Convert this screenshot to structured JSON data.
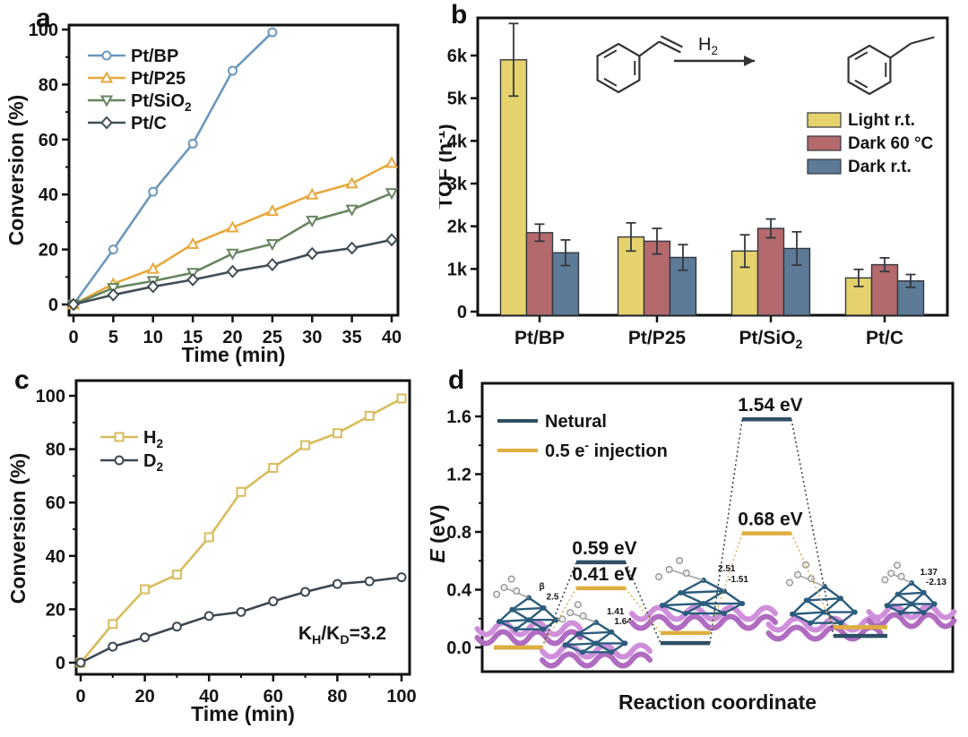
{
  "figure": {
    "panel_letters": {
      "a": "a",
      "b": "b",
      "c": "c",
      "d": "d"
    }
  },
  "chart_data": [
    {
      "panel": "a",
      "type": "line",
      "xlabel": "Time (min)",
      "ylabel": "Conversion (%)",
      "xlim": [
        0,
        40
      ],
      "ylim": [
        0,
        100
      ],
      "xticks": [
        0,
        5,
        10,
        15,
        20,
        25,
        30,
        35,
        40
      ],
      "yticks": [
        0,
        20,
        40,
        60,
        80,
        100
      ],
      "yminor": [
        10,
        30,
        50,
        70,
        90
      ],
      "legend_position": "top-left",
      "series": [
        {
          "name_segments": [
            {
              "t": "Pt/BP"
            }
          ],
          "marker": "circle",
          "color": "#6b97bd",
          "x": [
            0,
            5,
            10,
            15,
            20,
            25
          ],
          "values": [
            0,
            20,
            41,
            58.5,
            85,
            99
          ]
        },
        {
          "name_segments": [
            {
              "t": "Pt/P25"
            }
          ],
          "marker": "triangle-up",
          "color": "#e7a93e",
          "x": [
            0,
            5,
            10,
            15,
            20,
            25,
            30,
            35,
            40
          ],
          "values": [
            0,
            7.5,
            13,
            22,
            28,
            34,
            40,
            44,
            51.5
          ]
        },
        {
          "name_segments": [
            {
              "t": "Pt/SiO"
            },
            {
              "t": "2",
              "style": "sub"
            }
          ],
          "marker": "triangle-down",
          "color": "#67855f",
          "x": [
            0,
            5,
            10,
            15,
            20,
            25,
            30,
            35,
            40
          ],
          "values": [
            0,
            6,
            8.5,
            11.5,
            18.5,
            22,
            30.5,
            34.5,
            40.5
          ]
        },
        {
          "name_segments": [
            {
              "t": "Pt/C"
            }
          ],
          "marker": "diamond",
          "color": "#414e56",
          "x": [
            0,
            5,
            10,
            15,
            20,
            25,
            30,
            35,
            40
          ],
          "values": [
            0,
            3.5,
            6.5,
            9,
            12,
            14.5,
            18.5,
            20.5,
            23.5
          ]
        }
      ]
    },
    {
      "panel": "b",
      "type": "bar",
      "ylabel_segments": [
        {
          "t": "TOF (h"
        },
        {
          "t": "-1",
          "style": "sup"
        },
        {
          "t": ")"
        }
      ],
      "ylim": [
        0,
        6800
      ],
      "yticks": [
        {
          "v": 0,
          "l": "0"
        },
        {
          "v": 1000,
          "l": "1k"
        },
        {
          "v": 2000,
          "l": "2k"
        },
        {
          "v": 3000,
          "l": "3k"
        },
        {
          "v": 4000,
          "l": "4k"
        },
        {
          "v": 5000,
          "l": "5k"
        },
        {
          "v": 6000,
          "l": "6k"
        }
      ],
      "categories_segments": [
        [
          {
            "t": "Pt/BP"
          }
        ],
        [
          {
            "t": "Pt/P25"
          }
        ],
        [
          {
            "t": "Pt/SiO"
          },
          {
            "t": "2",
            "style": "sub"
          }
        ],
        [
          {
            "t": "Pt/C"
          }
        ]
      ],
      "series": [
        {
          "name_segments": [
            {
              "t": "Light r.t."
            }
          ],
          "color": "#e6d26d",
          "values": [
            5900,
            1750,
            1420,
            790
          ],
          "errors": [
            850,
            330,
            380,
            200
          ]
        },
        {
          "name_segments": [
            {
              "t": "Dark 60 °C"
            }
          ],
          "color": "#b4696d",
          "values": [
            1850,
            1650,
            1950,
            1100
          ],
          "errors": [
            200,
            300,
            220,
            160
          ]
        },
        {
          "name_segments": [
            {
              "t": "Dark r.t."
            }
          ],
          "color": "#5d7a97",
          "values": [
            1380,
            1270,
            1480,
            720
          ],
          "errors": [
            300,
            300,
            390,
            150
          ]
        }
      ],
      "reaction_scheme": {
        "reagent_label_segments": [
          {
            "t": "H"
          },
          {
            "t": "2",
            "style": "sub"
          }
        ],
        "left_molecule": "styrene",
        "right_molecule": "ethylbenzene"
      }
    },
    {
      "panel": "c",
      "type": "line",
      "xlabel": "Time (min)",
      "ylabel": "Conversion (%)",
      "xlim": [
        0,
        100
      ],
      "ylim": [
        0,
        100
      ],
      "xticks": [
        0,
        20,
        40,
        60,
        80,
        100
      ],
      "xminor": [
        10,
        30,
        50,
        70,
        90
      ],
      "yticks": [
        0,
        20,
        40,
        60,
        80,
        100
      ],
      "yminor": [
        10,
        30,
        50,
        70,
        90
      ],
      "annotation_segments": [
        {
          "t": "K"
        },
        {
          "t": "H",
          "style": "sub"
        },
        {
          "t": "/K"
        },
        {
          "t": "D",
          "style": "sub"
        },
        {
          "t": "=3.2"
        }
      ],
      "series": [
        {
          "name_segments": [
            {
              "t": "H"
            },
            {
              "t": "2",
              "style": "sub"
            }
          ],
          "marker": "square",
          "color": "#d9bb5c",
          "x": [
            0,
            10,
            20,
            30,
            40,
            50,
            60,
            70,
            80,
            90,
            100
          ],
          "values": [
            0,
            14.5,
            27.5,
            33,
            47,
            64,
            73,
            81.5,
            86,
            92.5,
            99
          ]
        },
        {
          "name_segments": [
            {
              "t": "D"
            },
            {
              "t": "2",
              "style": "sub"
            }
          ],
          "marker": "circle",
          "color": "#3c4750",
          "x": [
            0,
            10,
            20,
            30,
            40,
            50,
            60,
            70,
            80,
            90,
            100
          ],
          "values": [
            0,
            6,
            9.5,
            13.5,
            17.5,
            19,
            23,
            26.5,
            29.5,
            30.5,
            32
          ]
        }
      ]
    },
    {
      "panel": "d",
      "type": "energy-diagram",
      "xlabel": "Reaction coordinate",
      "ylabel_segments": [
        {
          "t": "E",
          "style": "italic"
        },
        {
          "t": " (eV)"
        }
      ],
      "ylim": [
        -0.15,
        1.75
      ],
      "yticks": [
        {
          "v": 0.0,
          "l": "0.0"
        },
        {
          "v": 0.4,
          "l": "0.4"
        },
        {
          "v": 0.8,
          "l": "0.8"
        },
        {
          "v": 1.2,
          "l": "1.2"
        },
        {
          "v": 1.6,
          "l": "1.6"
        }
      ],
      "yminor": [
        0.2,
        0.6,
        1.0,
        1.4
      ],
      "states": [
        "reactant",
        "TS1",
        "intermediate",
        "TS2",
        "product"
      ],
      "series": [
        {
          "name_segments": [
            {
              "t": "Netural"
            }
          ],
          "color": "#2e4f66",
          "levels": [
            0.0,
            0.59,
            0.03,
            1.58,
            0.08
          ],
          "barrier_labels": [
            {
              "state": 1,
              "text": "0.59 eV"
            },
            {
              "state": 3,
              "text": "1.54 eV"
            }
          ]
        },
        {
          "name_segments": [
            {
              "t": "0.5 e"
            },
            {
              "t": "-",
              "style": "sup"
            },
            {
              "t": " injection"
            }
          ],
          "color": "#dfaf3e",
          "levels": [
            0.0,
            0.41,
            0.1,
            0.79,
            0.14
          ],
          "barrier_labels": [
            {
              "state": 1,
              "text": "0.41 eV"
            },
            {
              "state": 3,
              "text": "0.68 eV"
            }
          ]
        }
      ],
      "molecule_annotations": [
        [
          "β",
          "2.5"
        ],
        [
          "1.41",
          "1.64"
        ],
        [
          "2.51",
          "-1.51"
        ],
        [],
        [
          "1.37",
          "-2.13"
        ]
      ]
    }
  ]
}
